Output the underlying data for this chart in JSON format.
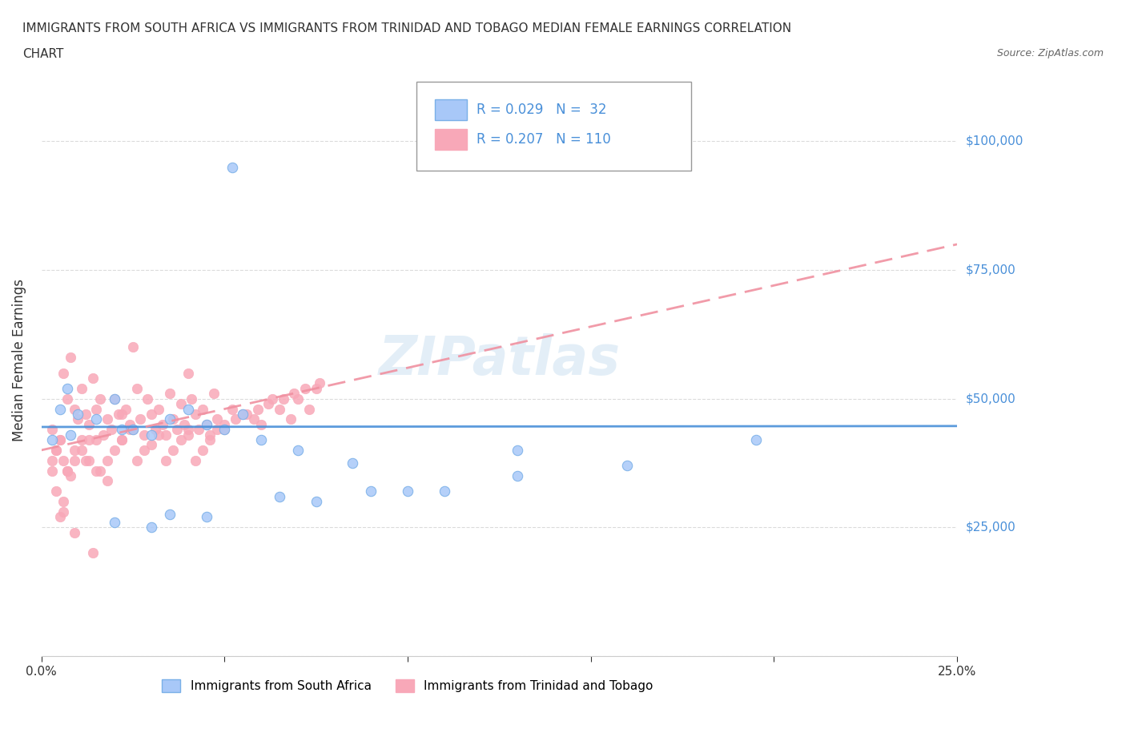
{
  "title_line1": "IMMIGRANTS FROM SOUTH AFRICA VS IMMIGRANTS FROM TRINIDAD AND TOBAGO MEDIAN FEMALE EARNINGS CORRELATION",
  "title_line2": "CHART",
  "source": "Source: ZipAtlas.com",
  "xlabel": "",
  "ylabel": "Median Female Earnings",
  "xlim": [
    0.0,
    0.25
  ],
  "ylim": [
    0,
    110000
  ],
  "xticks": [
    0.0,
    0.05,
    0.1,
    0.15,
    0.2,
    0.25
  ],
  "xtick_labels": [
    "0.0%",
    "",
    "",
    "",
    "",
    "25.0%"
  ],
  "yticks": [
    0,
    25000,
    50000,
    75000,
    100000
  ],
  "ytick_labels": [
    "",
    "$25,000",
    "$50,000",
    "$75,000",
    "$100,000"
  ],
  "color_south_africa": "#a8c8f8",
  "color_trinidad": "#f8a8b8",
  "color_line_south_africa": "#4a90d9",
  "color_line_trinidad": "#f8a8b8",
  "watermark": "ZIPatlas",
  "legend_R_sa": "R = 0.029",
  "legend_N_sa": "N =  32",
  "legend_R_tt": "R = 0.207",
  "legend_N_tt": "N = 110",
  "sa_x": [
    0.022,
    0.052,
    0.008,
    0.003,
    0.005,
    0.007,
    0.01,
    0.015,
    0.02,
    0.025,
    0.03,
    0.035,
    0.04,
    0.045,
    0.05,
    0.055,
    0.07,
    0.09,
    0.11,
    0.13,
    0.16,
    0.195,
    0.13,
    0.085,
    0.06,
    0.075,
    0.1,
    0.065,
    0.045,
    0.03,
    0.02,
    0.035
  ],
  "sa_y": [
    44000,
    95000,
    43000,
    42000,
    48000,
    52000,
    47000,
    46000,
    50000,
    44000,
    43000,
    46000,
    48000,
    45000,
    44000,
    47000,
    40000,
    32000,
    32000,
    35000,
    37000,
    42000,
    40000,
    37500,
    42000,
    30000,
    32000,
    31000,
    27000,
    25000,
    26000,
    27500
  ],
  "tt_x": [
    0.003,
    0.005,
    0.006,
    0.007,
    0.008,
    0.009,
    0.01,
    0.011,
    0.012,
    0.013,
    0.014,
    0.015,
    0.016,
    0.017,
    0.018,
    0.019,
    0.02,
    0.021,
    0.022,
    0.023,
    0.024,
    0.025,
    0.026,
    0.027,
    0.028,
    0.029,
    0.03,
    0.031,
    0.032,
    0.033,
    0.034,
    0.035,
    0.036,
    0.037,
    0.038,
    0.039,
    0.04,
    0.041,
    0.042,
    0.043,
    0.044,
    0.045,
    0.046,
    0.047,
    0.048,
    0.05,
    0.052,
    0.055,
    0.058,
    0.06,
    0.063,
    0.065,
    0.068,
    0.07,
    0.073,
    0.075,
    0.04,
    0.025,
    0.015,
    0.012,
    0.008,
    0.006,
    0.005,
    0.004,
    0.007,
    0.009,
    0.011,
    0.013,
    0.016,
    0.018,
    0.02,
    0.022,
    0.024,
    0.026,
    0.028,
    0.03,
    0.032,
    0.034,
    0.036,
    0.038,
    0.04,
    0.042,
    0.044,
    0.046,
    0.048,
    0.05,
    0.053,
    0.056,
    0.059,
    0.062,
    0.066,
    0.069,
    0.072,
    0.076,
    0.022,
    0.014,
    0.009,
    0.006,
    0.004,
    0.003,
    0.003,
    0.004,
    0.005,
    0.006,
    0.007,
    0.009,
    0.011,
    0.013,
    0.015,
    0.018
  ],
  "tt_y": [
    44000,
    42000,
    55000,
    50000,
    58000,
    48000,
    46000,
    52000,
    47000,
    45000,
    54000,
    48000,
    50000,
    43000,
    46000,
    44000,
    50000,
    47000,
    42000,
    48000,
    45000,
    44000,
    52000,
    46000,
    43000,
    50000,
    47000,
    44000,
    48000,
    45000,
    43000,
    51000,
    46000,
    44000,
    49000,
    45000,
    43000,
    50000,
    47000,
    44000,
    48000,
    45000,
    43000,
    51000,
    46000,
    44000,
    48000,
    47000,
    46000,
    45000,
    50000,
    48000,
    46000,
    50000,
    48000,
    52000,
    55000,
    60000,
    42000,
    38000,
    35000,
    30000,
    27000,
    40000,
    36000,
    38000,
    40000,
    42000,
    36000,
    38000,
    40000,
    42000,
    44000,
    38000,
    40000,
    41000,
    43000,
    38000,
    40000,
    42000,
    44000,
    38000,
    40000,
    42000,
    44000,
    45000,
    46000,
    47000,
    48000,
    49000,
    50000,
    51000,
    52000,
    53000,
    47000,
    20000,
    24000,
    28000,
    32000,
    36000,
    38000,
    40000,
    42000,
    38000,
    36000,
    40000,
    42000,
    38000,
    36000,
    34000
  ]
}
